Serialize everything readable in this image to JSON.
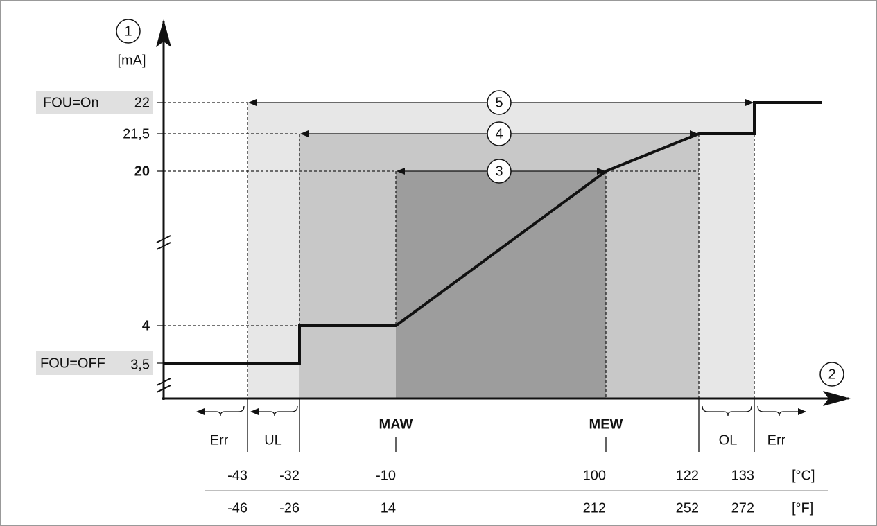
{
  "axis": {
    "y_marker": "1",
    "y_unit": "[mA]",
    "x_marker": "2"
  },
  "y_labels": {
    "fou_on": "FOU=On",
    "v22": "22",
    "v21_5": "21,5",
    "v20": "20",
    "v4": "4",
    "fou_off": "FOU=OFF",
    "v3_5": "3,5"
  },
  "ranges": [
    "3",
    "4",
    "5"
  ],
  "x_labels": {
    "err_left": "Err",
    "ul": "UL",
    "maw": "MAW",
    "mew": "MEW",
    "ol": "OL",
    "err_right": "Err"
  },
  "celsius": {
    "unit": "[°C]",
    "values": [
      "-43",
      "-32",
      "-10",
      "100",
      "122",
      "133"
    ]
  },
  "fahrenheit": {
    "unit": "[°F]",
    "values": [
      "-46",
      "-26",
      "14",
      "212",
      "252",
      "272"
    ]
  }
}
